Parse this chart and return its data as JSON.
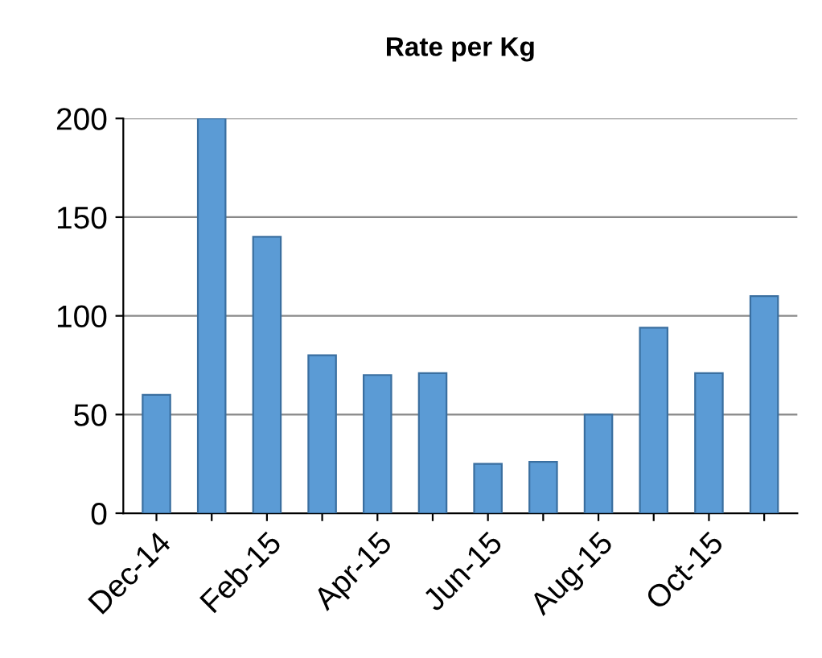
{
  "chart_data": {
    "type": "bar",
    "title": "Rate per Kg",
    "categories": [
      "Dec-14",
      null,
      "Feb-15",
      null,
      "Apr-15",
      null,
      "Jun-15",
      null,
      "Aug-15",
      null,
      "Oct-15",
      null
    ],
    "values": [
      60,
      200,
      140,
      80,
      70,
      71,
      25,
      26,
      50,
      94,
      71,
      110
    ],
    "color": "#5b9bd5",
    "ylim": [
      0,
      200
    ],
    "yticks": [
      0,
      50,
      100,
      150,
      200
    ],
    "grid": "y"
  }
}
